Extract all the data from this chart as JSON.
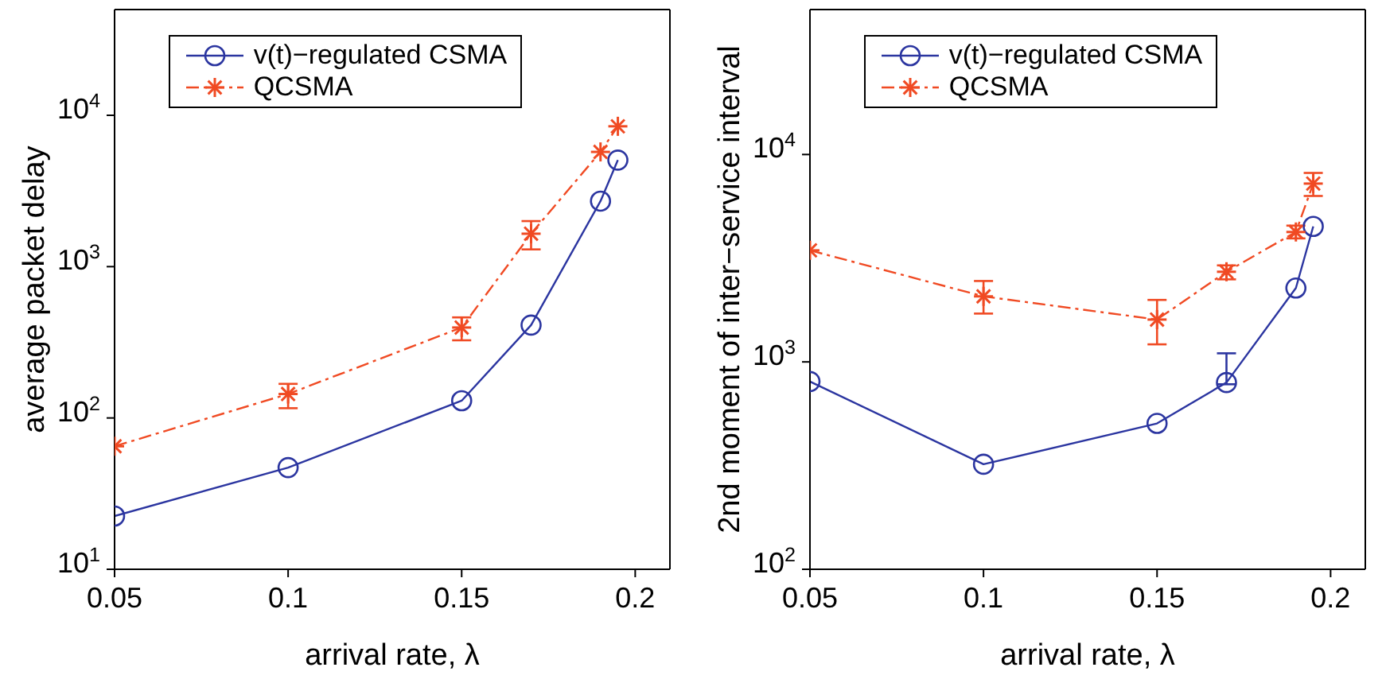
{
  "chart_data": [
    {
      "type": "line",
      "xlabel": "arrival rate, λ",
      "ylabel": "average packet delay",
      "x": [
        0.05,
        0.1,
        0.15,
        0.17,
        0.19,
        0.195
      ],
      "xlim": [
        0.05,
        0.21
      ],
      "xticks": [
        0.05,
        0.1,
        0.15,
        0.2
      ],
      "ylim": [
        10,
        50000
      ],
      "yticks": [
        {
          "value": 10,
          "label": "10$^{1}$"
        },
        {
          "value": 100,
          "label": "10$^{2}$"
        },
        {
          "value": 1000,
          "label": "10$^{3}$"
        },
        {
          "value": 10000,
          "label": "10$^{4}$"
        }
      ],
      "log": "y",
      "grid": false,
      "legend": "top",
      "series": [
        {
          "name": "v(t)−regulated CSMA",
          "color": "#2b35a0",
          "marker": "circle",
          "line_style": "solid",
          "values": [
            22.5,
            47,
            130,
            411,
            2710,
            5060
          ]
        },
        {
          "name": "QCSMA",
          "color": "#f04a23",
          "marker": "cross",
          "line_style": "dashed",
          "values": [
            65,
            144,
            396,
            1650,
            5730,
            8460
          ],
          "errors": [
            null,
            [
              116,
              168
            ],
            [
              326,
              462
            ],
            [
              1300,
              2000
            ],
            null,
            null
          ]
        }
      ]
    },
    {
      "type": "line",
      "xlabel": "arrival rate, λ",
      "ylabel": "2nd moment of inter−service interval",
      "x": [
        0.05,
        0.1,
        0.15,
        0.17,
        0.19,
        0.195
      ],
      "xlim": [
        0.05,
        0.21
      ],
      "xticks": [
        0.05,
        0.1,
        0.15,
        0.2
      ],
      "ylim": [
        100,
        50000
      ],
      "yticks": [
        {
          "value": 100,
          "label": "10$^{2}$"
        },
        {
          "value": 1000,
          "label": "10$^{3}$"
        },
        {
          "value": 10000,
          "label": "10$^{4}$"
        }
      ],
      "log": "y",
      "grid": false,
      "legend": "top",
      "series": [
        {
          "name": "v(t)−regulated CSMA",
          "color": "#2b35a0",
          "marker": "circle",
          "line_style": "solid",
          "values": [
            804,
            321,
            505,
            795,
            2270,
            4500
          ],
          "errors": [
            null,
            null,
            null,
            [
              780,
              1100
            ],
            null,
            null
          ]
        },
        {
          "name": "QCSMA",
          "color": "#f04a23",
          "marker": "cross",
          "line_style": "dashed",
          "values": [
            3450,
            2070,
            1600,
            2720,
            4230,
            7240
          ],
          "errors": [
            null,
            [
              1710,
              2455
            ],
            [
              1215,
              1990
            ],
            [
              2500,
              2920
            ],
            [
              3940,
              4540
            ],
            [
              6310,
              8150
            ]
          ]
        }
      ]
    }
  ]
}
